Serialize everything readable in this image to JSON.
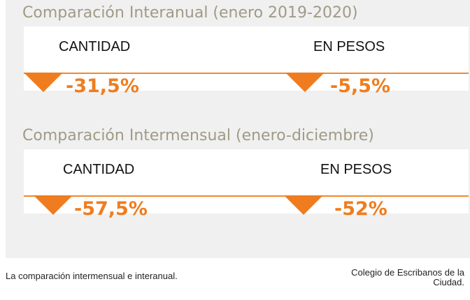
{
  "sections": [
    {
      "title": "Comparación Interanual (enero 2019-2020)",
      "cantidad_label": "CANTIDAD",
      "cantidad_value": "-31,5%",
      "pesos_label": "EN PESOS",
      "pesos_value": "-5,5%"
    },
    {
      "title": "Comparación Intermensual (enero-diciembre)",
      "cantidad_label": "CANTIDAD",
      "cantidad_value": "-57,5%",
      "pesos_label": "EN PESOS",
      "pesos_value": "-52%"
    }
  ],
  "caption": "La comparación intermensual e interanual.",
  "credit": "Colegio de Escribanos de la Ciudad.",
  "colors": {
    "accent": "#ef7d1f",
    "title": "#a09a86",
    "panel": "#f0f0f0"
  },
  "icons": [
    "down-triangle-icon"
  ]
}
